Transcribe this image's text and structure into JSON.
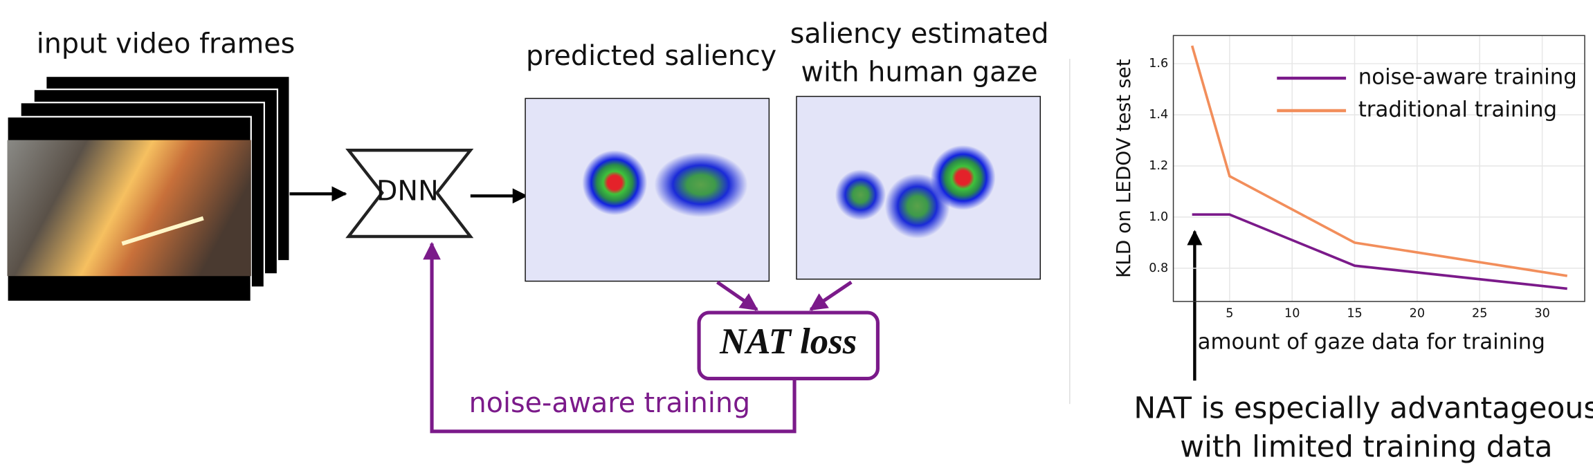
{
  "diagram": {
    "input_label": "input video frames",
    "network": "DNN",
    "predicted_label": "predicted saliency",
    "gaze_label": [
      "saliency estimated",
      "with human gaze"
    ],
    "loss": "NAT loss",
    "feedback": "noise-aware training"
  },
  "chart_data": {
    "type": "line",
    "ylabel": "KLD on LEDOV test set",
    "xlabel": "amount of gaze data for training",
    "annotation": [
      "NAT is especially advantageous",
      "with limited training data"
    ],
    "x": [
      2,
      5,
      15,
      32
    ],
    "series": [
      {
        "name": "noise-aware training",
        "color": "#7b1a8a",
        "values": [
          1.01,
          1.01,
          0.81,
          0.72
        ]
      },
      {
        "name": "traditional training",
        "color": "#f28e5b",
        "values": [
          1.67,
          1.16,
          0.9,
          0.77
        ]
      }
    ],
    "xlim": [
      0.5,
      33.4
    ],
    "ylim": [
      0.67,
      1.71
    ],
    "xticks": [
      5,
      10,
      15,
      20,
      25,
      30
    ],
    "yticks": [
      {
        "value": 0.8,
        "label": "0.8"
      },
      {
        "value": 1.0,
        "label": "1.0"
      },
      {
        "value": 1.2,
        "label": "1.2"
      },
      {
        "value": 1.4,
        "label": "1.4"
      },
      {
        "value": 1.6,
        "label": "1.6"
      }
    ],
    "grid": true,
    "legend": "upper right"
  }
}
